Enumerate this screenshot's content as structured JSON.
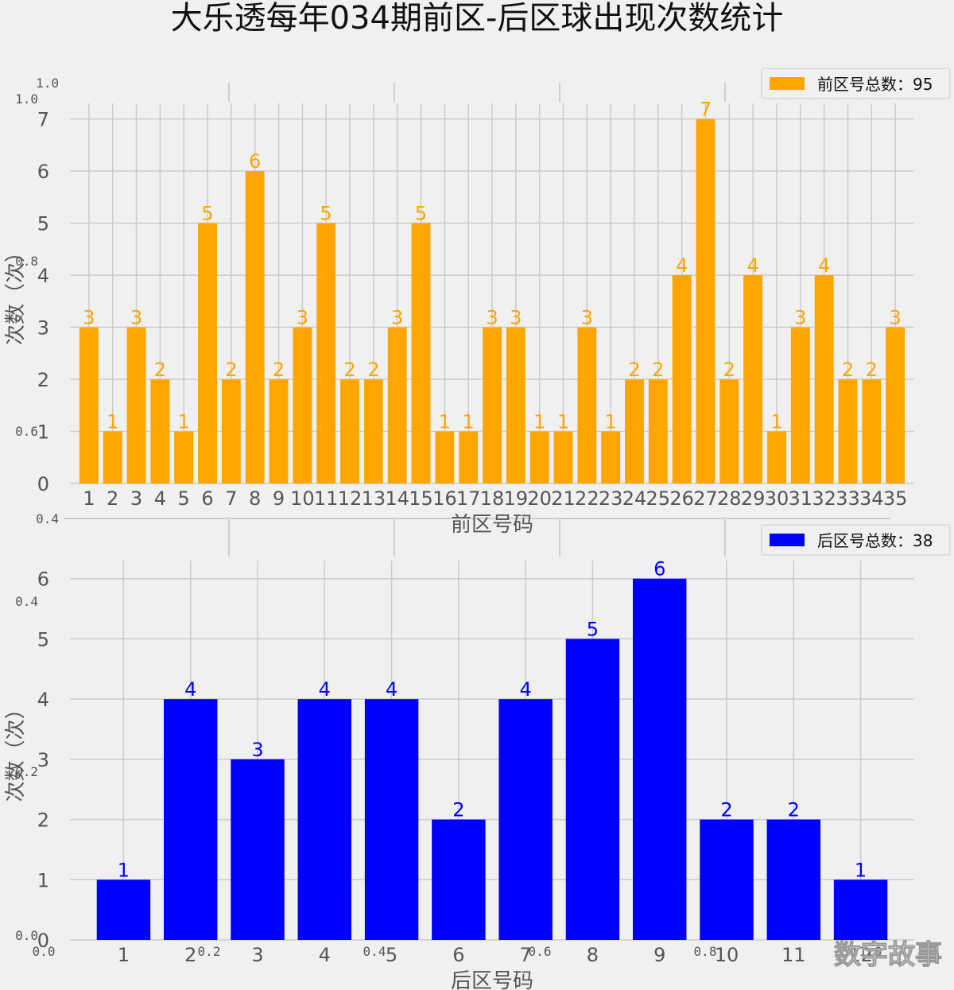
{
  "title": "大乐透每年034期前区-后区球出现次数统计",
  "watermark": "数字故事",
  "background_axis_ticks": {
    "x": [
      "0.0",
      "0.2",
      "0.4",
      "0.6",
      "0.8",
      "1.0"
    ],
    "y": [
      "0.0",
      "0.2",
      "0.4",
      "0.6",
      "0.8",
      "1.0"
    ]
  },
  "chart_data": [
    {
      "type": "bar",
      "id": "front",
      "color": "#ffa500",
      "categories": [
        "1",
        "2",
        "3",
        "4",
        "5",
        "6",
        "7",
        "8",
        "9",
        "10",
        "11",
        "12",
        "13",
        "14",
        "15",
        "16",
        "17",
        "18",
        "19",
        "20",
        "21",
        "22",
        "23",
        "24",
        "25",
        "26",
        "27",
        "28",
        "29",
        "30",
        "31",
        "32",
        "33",
        "34",
        "35"
      ],
      "values": [
        3,
        1,
        3,
        2,
        1,
        5,
        2,
        6,
        2,
        3,
        5,
        2,
        2,
        3,
        5,
        1,
        1,
        3,
        3,
        1,
        1,
        3,
        1,
        2,
        2,
        4,
        7,
        2,
        4,
        1,
        3,
        4,
        2,
        2,
        3
      ],
      "xlabel": "前区号码",
      "ylabel": "次数（次）",
      "ylim": [
        0,
        7.3
      ],
      "yticks": [
        0,
        1,
        2,
        3,
        4,
        5,
        6,
        7
      ],
      "legend": "前区号总数：95",
      "legend_position": "top-right",
      "grid": true
    },
    {
      "type": "bar",
      "id": "back",
      "color": "#0000ff",
      "categories": [
        "1",
        "2",
        "3",
        "4",
        "5",
        "6",
        "7",
        "8",
        "9",
        "10",
        "11",
        "12"
      ],
      "values": [
        1,
        4,
        3,
        4,
        4,
        2,
        4,
        5,
        6,
        2,
        2,
        1
      ],
      "xlabel": "后区号码",
      "ylabel": "次数（次）",
      "ylim": [
        0,
        6.3
      ],
      "yticks": [
        0,
        1,
        2,
        3,
        4,
        5,
        6
      ],
      "legend": "后区号总数：38",
      "legend_position": "top-right",
      "grid": true
    }
  ]
}
